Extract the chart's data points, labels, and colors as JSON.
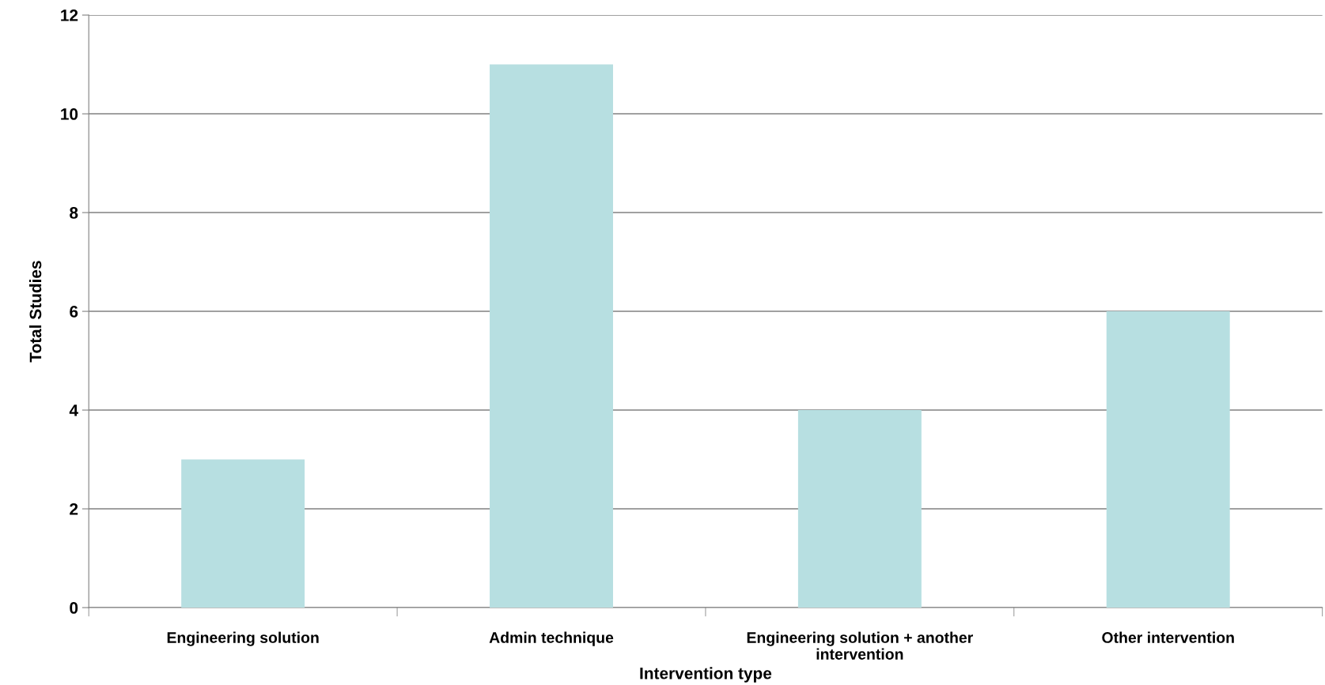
{
  "chart_data": {
    "type": "bar",
    "xlabel": "Intervention type",
    "ylabel": "Total Studies",
    "categories": [
      "Engineering solution",
      "Admin technique",
      "Engineering solution + another intervention",
      "Other intervention"
    ],
    "values": [
      3,
      11,
      4,
      6
    ],
    "color": "#b7dfe1",
    "ylim": [
      0,
      12
    ],
    "yticks": [
      0,
      2,
      4,
      6,
      8,
      10,
      12
    ],
    "grid": "y"
  }
}
